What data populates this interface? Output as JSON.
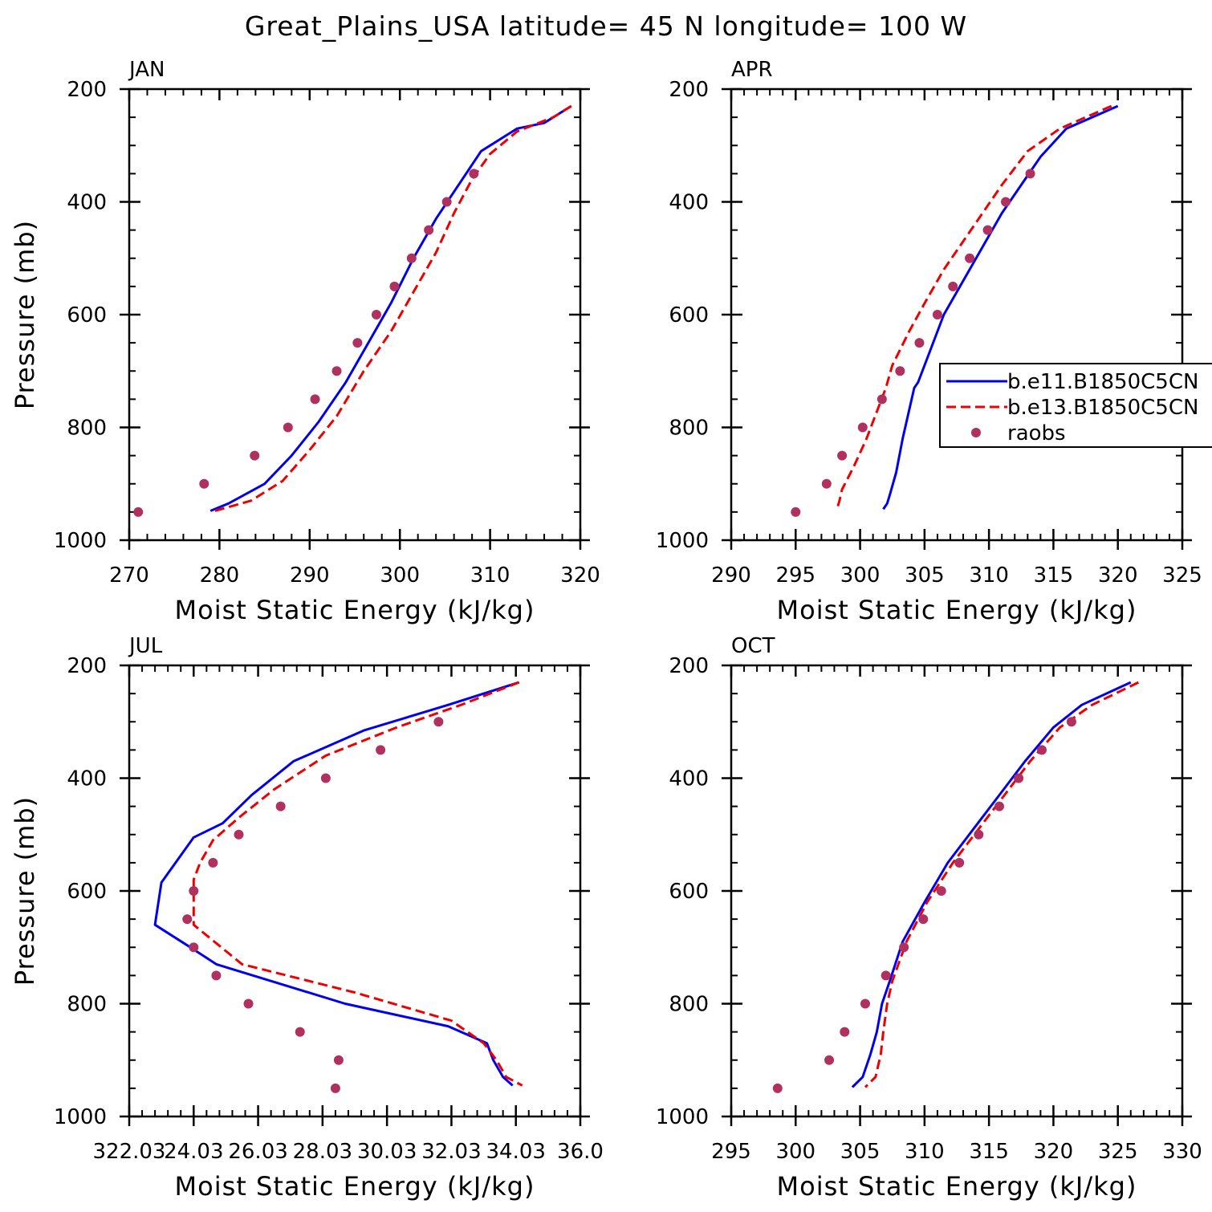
{
  "figure": {
    "title": "Great_Plains_USA  latitude= 45 N longitude= 100 W"
  },
  "legend": {
    "entries": [
      "b.e11.B1850C5CN",
      "b.e13.B1850C5CN",
      "raobs"
    ],
    "colors": [
      "#0000ee",
      "#ee0000",
      "#b03060"
    ],
    "styles": [
      "solid",
      "dashed",
      "dot"
    ]
  },
  "chart_data": [
    {
      "type": "line",
      "panel_title": "JAN",
      "xlabel": "Moist Static Energy (kJ/kg)",
      "ylabel": "Pressure (mb)",
      "xlim": [
        270,
        320
      ],
      "ylim": [
        1000,
        200
      ],
      "xticks": [
        "270",
        "280",
        "290",
        "300",
        "310",
        "320"
      ],
      "yticks": [
        "200",
        "400",
        "600",
        "800",
        "1000"
      ],
      "series": [
        {
          "name": "b.e11.B1850C5CN",
          "style": "solid",
          "x": [
            319,
            316,
            313,
            309,
            306.5,
            304,
            301.5,
            299,
            296.5,
            294,
            291,
            288,
            285,
            281,
            279
          ],
          "y": [
            230,
            260,
            270,
            310,
            370,
            430,
            500,
            580,
            650,
            720,
            790,
            850,
            900,
            935,
            948
          ]
        },
        {
          "name": "b.e13.B1850C5CN",
          "style": "dashed",
          "x": [
            319,
            317,
            313,
            310,
            308,
            306,
            304,
            301.5,
            299,
            296,
            293,
            290,
            287,
            283.5,
            279.5
          ],
          "y": [
            230,
            250,
            275,
            315,
            360,
            420,
            490,
            560,
            630,
            700,
            780,
            840,
            895,
            930,
            948
          ]
        },
        {
          "name": "raobs",
          "style": "dot",
          "x": [
            308.2,
            305.2,
            303.2,
            301.3,
            299.4,
            297.4,
            295.3,
            293.0,
            290.6,
            287.6,
            283.9,
            278.3,
            271.0
          ],
          "y": [
            350,
            400,
            450,
            500,
            550,
            600,
            650,
            700,
            750,
            800,
            850,
            900,
            950
          ]
        }
      ]
    },
    {
      "type": "line",
      "panel_title": "APR",
      "xlabel": "Moist Static Energy (kJ/kg)",
      "ylabel": "",
      "xlim": [
        290,
        325
      ],
      "ylim": [
        1000,
        200
      ],
      "xticks": [
        "290",
        "295",
        "300",
        "305",
        "310",
        "315",
        "320",
        "325"
      ],
      "yticks": [
        "200",
        "400",
        "600",
        "800",
        "1000"
      ],
      "show_legend": true,
      "series": [
        {
          "name": "b.e11.B1850C5CN",
          "style": "solid",
          "x": [
            320,
            316,
            314,
            312.5,
            311,
            309.5,
            308,
            306.5,
            305.5,
            304.5,
            304.2,
            303.3,
            302.8,
            302.3,
            302.1,
            301.8
          ],
          "y": [
            230,
            270,
            320,
            370,
            420,
            480,
            540,
            600,
            660,
            720,
            730,
            820,
            880,
            920,
            935,
            945
          ]
        },
        {
          "name": "b.e13.B1850C5CN",
          "style": "dashed",
          "x": [
            319.5,
            315.5,
            313,
            311,
            309.5,
            308,
            306.5,
            305,
            303.8,
            302.5,
            302,
            300.5,
            299.5,
            298.6,
            298.4,
            298.2
          ],
          "y": [
            230,
            270,
            310,
            370,
            420,
            470,
            520,
            580,
            630,
            690,
            730,
            820,
            870,
            910,
            930,
            945
          ]
        },
        {
          "name": "raobs",
          "style": "dot",
          "x": [
            313.2,
            311.3,
            309.9,
            308.5,
            307.2,
            306.0,
            304.6,
            303.1,
            301.7,
            300.2,
            298.6,
            297.4,
            295.0
          ],
          "y": [
            350,
            400,
            450,
            500,
            550,
            600,
            650,
            700,
            750,
            800,
            850,
            900,
            950
          ]
        }
      ]
    },
    {
      "type": "line",
      "panel_title": "JUL",
      "xlabel": "Moist Static Energy (kJ/kg)",
      "ylabel": "Pressure (mb)",
      "xlim": [
        322.03,
        336.03
      ],
      "ylim": [
        1000,
        200
      ],
      "xticks": [
        "322.03",
        "24.03",
        "26.03",
        "28.03",
        "30.03",
        "32.03",
        "34.03",
        "36.0"
      ],
      "yticks": [
        "200",
        "400",
        "600",
        "800",
        "1000"
      ],
      "series": [
        {
          "name": "b.e11.B1850C5CN",
          "style": "solid",
          "x": [
            334.13,
            331.93,
            329.33,
            327.13,
            325.83,
            324.93,
            324.03,
            323.03,
            322.83,
            323.93,
            324.73,
            328.73,
            331.93,
            333.13,
            333.33,
            333.63,
            333.93
          ],
          "y": [
            230,
            270,
            315,
            370,
            430,
            480,
            505,
            585,
            660,
            700,
            730,
            800,
            840,
            870,
            900,
            930,
            945
          ]
        },
        {
          "name": "b.e13.B1850C5CN",
          "style": "dashed",
          "x": [
            334.13,
            332.33,
            330.33,
            328.13,
            326.53,
            325.43,
            324.63,
            324.23,
            324.03,
            324.03,
            325.53,
            329.03,
            332.03,
            333.03,
            333.43,
            333.73,
            334.23
          ],
          "y": [
            230,
            270,
            310,
            360,
            420,
            470,
            510,
            550,
            580,
            660,
            730,
            780,
            830,
            870,
            900,
            930,
            945
          ]
        },
        {
          "name": "raobs",
          "style": "dot",
          "x": [
            331.63,
            329.83,
            328.13,
            326.73,
            325.43,
            324.63,
            324.03,
            323.83,
            324.03,
            324.73,
            325.73,
            327.33,
            328.53,
            328.43
          ],
          "y": [
            300,
            350,
            400,
            450,
            500,
            550,
            600,
            650,
            700,
            750,
            800,
            850,
            900,
            950
          ]
        }
      ]
    },
    {
      "type": "line",
      "panel_title": "OCT",
      "xlabel": "Moist Static Energy (kJ/kg)",
      "ylabel": "",
      "xlim": [
        295,
        330
      ],
      "ylim": [
        1000,
        200
      ],
      "xticks": [
        "295",
        "300",
        "305",
        "310",
        "315",
        "320",
        "325",
        "330"
      ],
      "yticks": [
        "200",
        "400",
        "600",
        "800",
        "1000"
      ],
      "series": [
        {
          "name": "b.e11.B1850C5CN",
          "style": "solid",
          "x": [
            326,
            322.2,
            320,
            317.8,
            315.8,
            313.8,
            311.8,
            310,
            308.3,
            307.3,
            306.7,
            306.3,
            305.8,
            305.2,
            304.4
          ],
          "y": [
            230,
            270,
            310,
            370,
            430,
            490,
            550,
            620,
            690,
            760,
            800,
            850,
            890,
            930,
            948
          ]
        },
        {
          "name": "b.e13.B1850C5CN",
          "style": "dashed",
          "x": [
            326.6,
            323,
            320.5,
            318.2,
            316.2,
            314.2,
            312.2,
            310.2,
            308.6,
            307.5,
            307.1,
            306.8,
            306.6,
            306.2,
            305.4
          ],
          "y": [
            230,
            270,
            310,
            370,
            430,
            490,
            550,
            620,
            690,
            760,
            800,
            850,
            890,
            930,
            948
          ]
        },
        {
          "name": "raobs",
          "style": "dot",
          "x": [
            321.4,
            319.1,
            317.3,
            315.8,
            314.2,
            312.7,
            311.3,
            309.9,
            308.4,
            307.0,
            305.4,
            303.8,
            302.6,
            298.6
          ],
          "y": [
            300,
            350,
            400,
            450,
            500,
            550,
            600,
            650,
            700,
            750,
            800,
            850,
            900,
            950
          ]
        }
      ]
    }
  ]
}
